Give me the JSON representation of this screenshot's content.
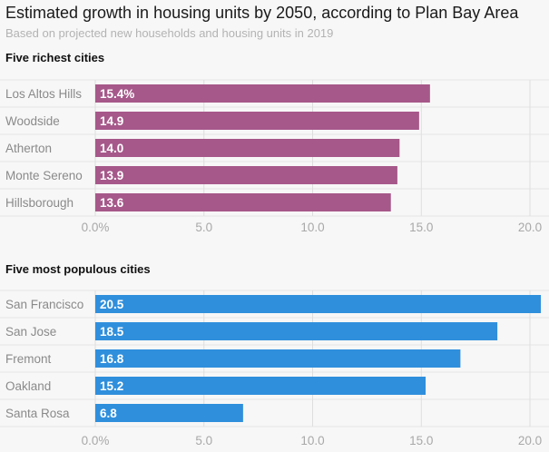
{
  "title": "Estimated growth in housing units by 2050, according to Plan Bay Area",
  "subtitle": "Based on projected new households and housing units in 2019",
  "chart_data": [
    {
      "type": "bar",
      "orientation": "horizontal",
      "panel_title": "Five richest cities",
      "categories": [
        "Los Altos Hills",
        "Woodside",
        "Atherton",
        "Monte Sereno",
        "Hillsborough"
      ],
      "values": [
        15.4,
        14.9,
        14.0,
        13.9,
        13.6
      ],
      "value_labels": [
        "15.4%",
        "14.9",
        "14.0",
        "13.9",
        "13.6"
      ],
      "xlim": [
        0,
        20.5
      ],
      "ticks": [
        0,
        5,
        10,
        15,
        20
      ],
      "tick_labels": [
        "0.0%",
        "5.0",
        "10.0",
        "15.0",
        "20.0"
      ],
      "color": "#a6588a",
      "grid": true
    },
    {
      "type": "bar",
      "orientation": "horizontal",
      "panel_title": "Five most populous cities",
      "categories": [
        "San Francisco",
        "San Jose",
        "Fremont",
        "Oakland",
        "Santa Rosa"
      ],
      "values": [
        20.5,
        18.5,
        16.8,
        15.2,
        6.8
      ],
      "value_labels": [
        "20.5",
        "18.5",
        "16.8",
        "15.2",
        "6.8"
      ],
      "xlim": [
        0,
        20.5
      ],
      "ticks": [
        0,
        5,
        10,
        15,
        20
      ],
      "tick_labels": [
        "0.0%",
        "5.0",
        "10.0",
        "15.0",
        "20.0"
      ],
      "color": "#2f8fdc",
      "grid": true
    }
  ]
}
